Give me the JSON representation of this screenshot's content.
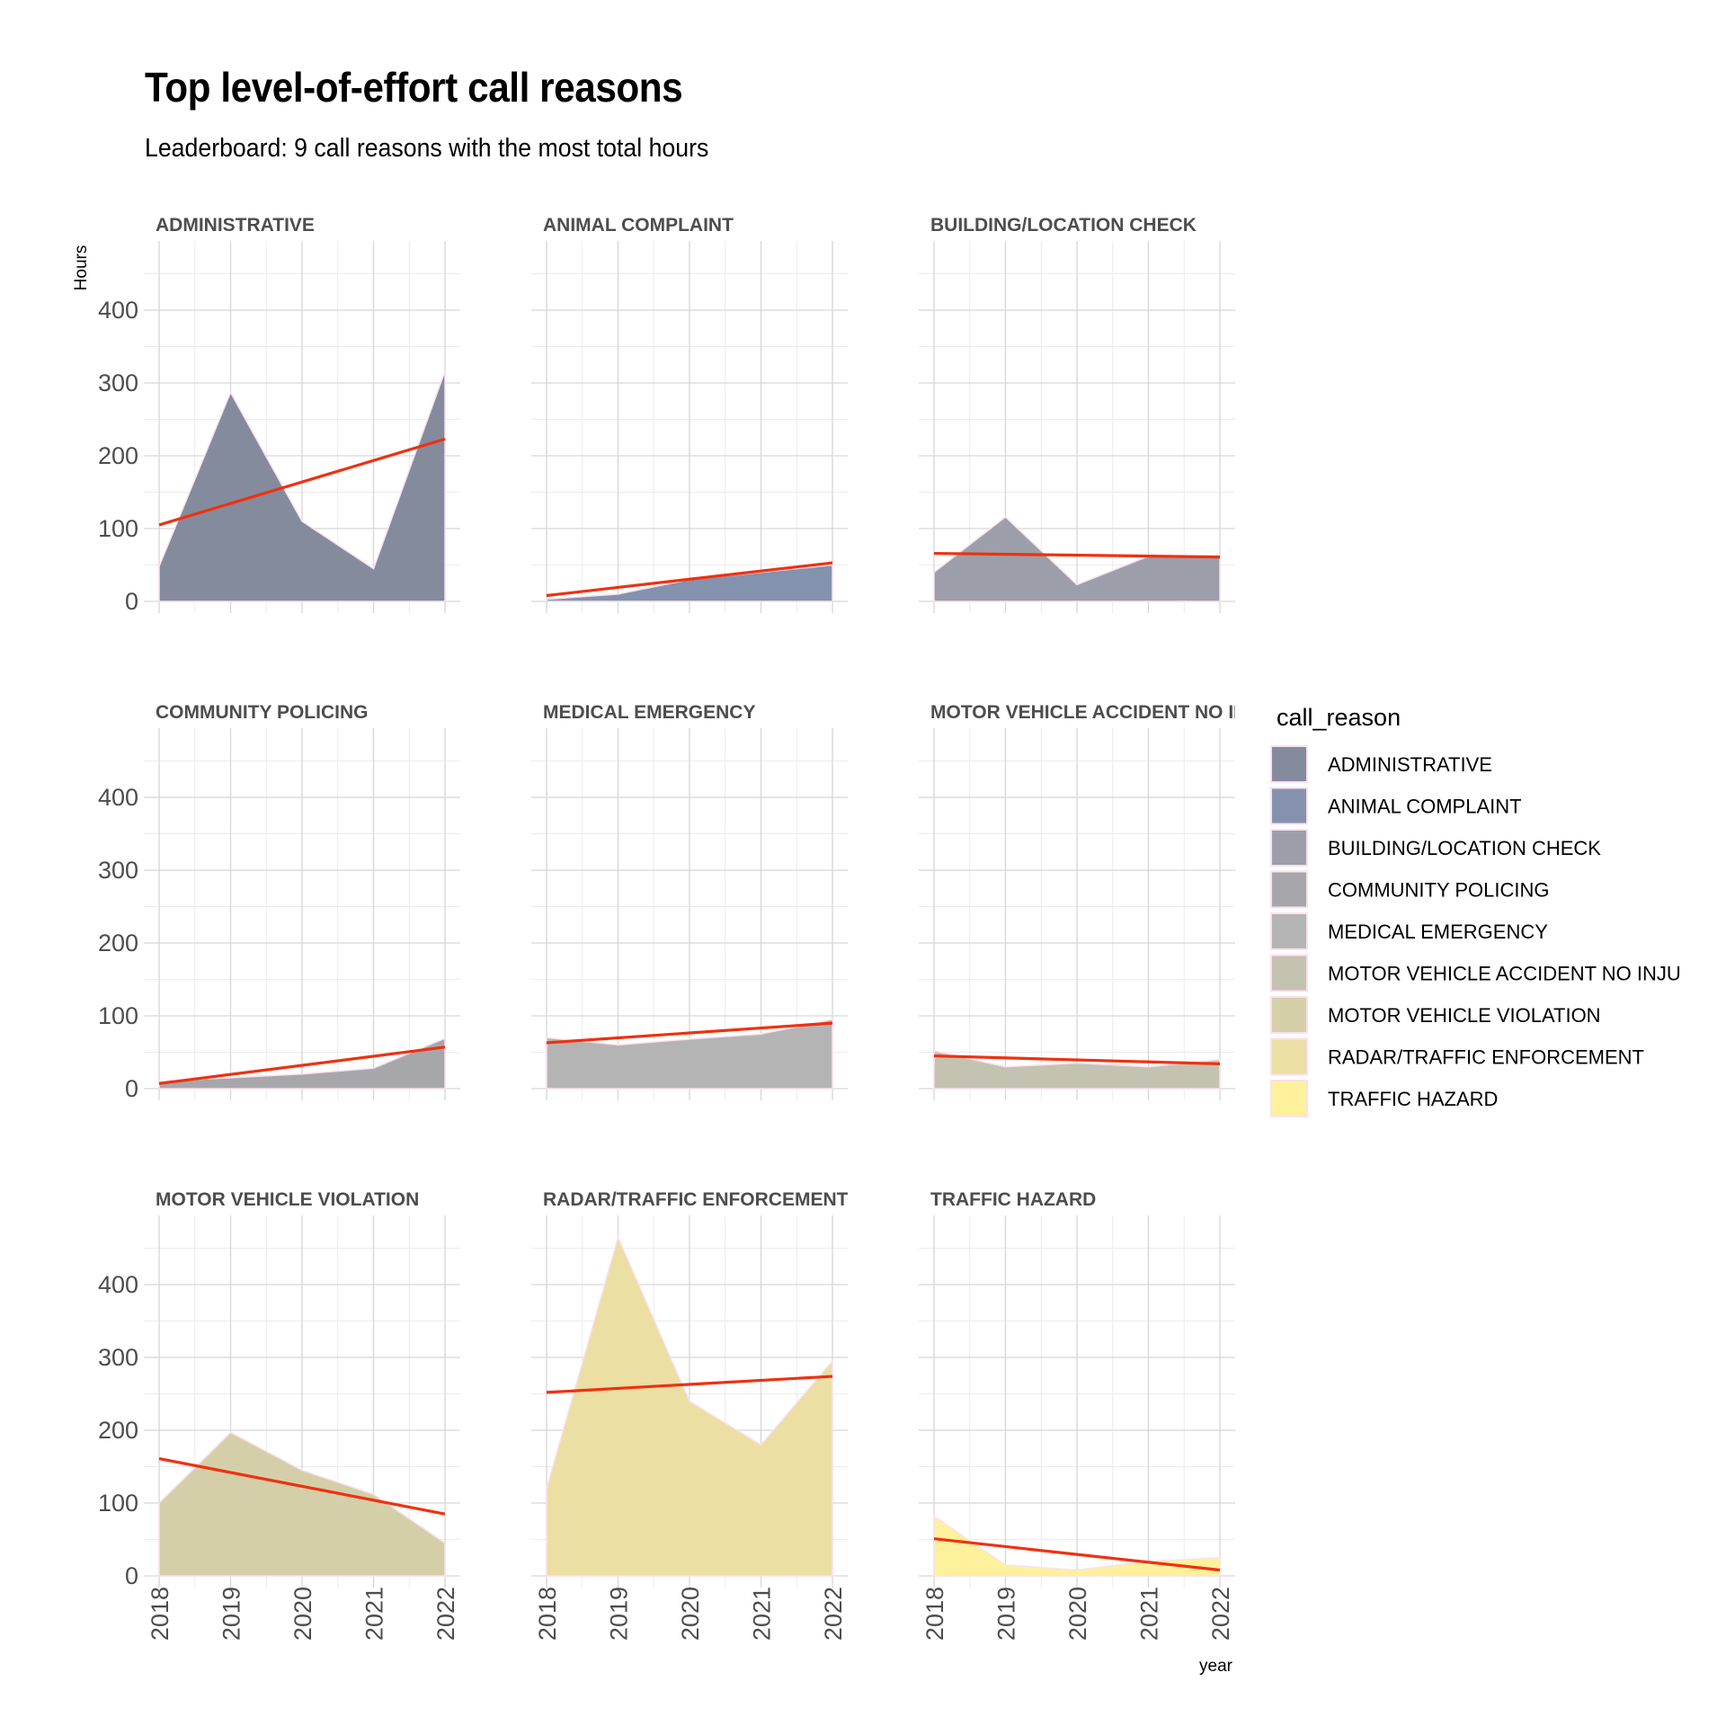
{
  "title": "Top level-of-effort call reasons",
  "subtitle": "Leaderboard: 9 call reasons with the most total hours",
  "chart_data": {
    "type": "area",
    "facet_by": "call_reason",
    "facet_layout": "3x3 grid, shared axes",
    "x": [
      2018,
      2019,
      2020,
      2021,
      2022
    ],
    "x_tick_labels": [
      "2018",
      "2019",
      "2020",
      "2021",
      "2022"
    ],
    "xlabel": "year",
    "ylabel": "Hours",
    "ylim": [
      0,
      480
    ],
    "y_ticks": [
      0,
      100,
      200,
      300,
      400
    ],
    "y_tick_labels": [
      "0",
      "100",
      "200",
      "300",
      "400"
    ],
    "grid": true,
    "trend_line": {
      "type": "linear fit",
      "color": "#f0300f"
    },
    "area_outline_color": "#fbe0ee",
    "legend": {
      "title": "call_reason",
      "position": "right"
    },
    "series": [
      {
        "name": "ADMINISTRATIVE",
        "strip_label": "ADMINISTRATIVE",
        "color": "#848b9d",
        "values": [
          48,
          287,
          110,
          45,
          316
        ],
        "trend": [
          105,
          223
        ]
      },
      {
        "name": "ANIMAL COMPLAINT",
        "strip_label": "ANIMAL COMPLAINT",
        "color": "#8492ae",
        "values": [
          3,
          10,
          30,
          40,
          50
        ],
        "trend": [
          8,
          53
        ]
      },
      {
        "name": "BUILDING/LOCATION CHECK",
        "strip_label": "BUILDING/LOCATION CHECK",
        "color": "#9c9fa9",
        "values": [
          40,
          116,
          23,
          62,
          60
        ],
        "trend": [
          66,
          61
        ]
      },
      {
        "name": "COMMUNITY POLICING",
        "strip_label": "COMMUNITY POLICING",
        "color": "#a7a7ab",
        "values": [
          10,
          15,
          20,
          28,
          69
        ],
        "trend": [
          7,
          57
        ]
      },
      {
        "name": "MEDICAL EMERGENCY",
        "strip_label": "MEDICAL EMERGENCY",
        "color": "#b5b4b4",
        "values": [
          70,
          60,
          68,
          75,
          95
        ],
        "trend": [
          63,
          90
        ]
      },
      {
        "name": "MOTOR VEHICLE ACCIDENT NO INJU",
        "strip_label": "MOTOR VEHICLE ACCIDENT NO INJ",
        "color": "#c4c2b1",
        "values": [
          52,
          30,
          35,
          30,
          40
        ],
        "trend": [
          45,
          34
        ]
      },
      {
        "name": "MOTOR VEHICLE VIOLATION",
        "strip_label": "MOTOR VEHICLE VIOLATION",
        "color": "#d4cfa9",
        "values": [
          100,
          197,
          145,
          112,
          45
        ],
        "trend": [
          161,
          85
        ]
      },
      {
        "name": "RADAR/TRAFFIC ENFORCEMENT",
        "strip_label": "RADAR/TRAFFIC ENFORCEMENT",
        "color": "#ebdfa3",
        "values": [
          120,
          465,
          240,
          180,
          295
        ],
        "trend": [
          252,
          274
        ]
      },
      {
        "name": "TRAFFIC HAZARD",
        "strip_label": "TRAFFIC HAZARD",
        "color": "#fef19b",
        "values": [
          82,
          15,
          8,
          20,
          25
        ],
        "trend": [
          51,
          8
        ]
      }
    ]
  }
}
